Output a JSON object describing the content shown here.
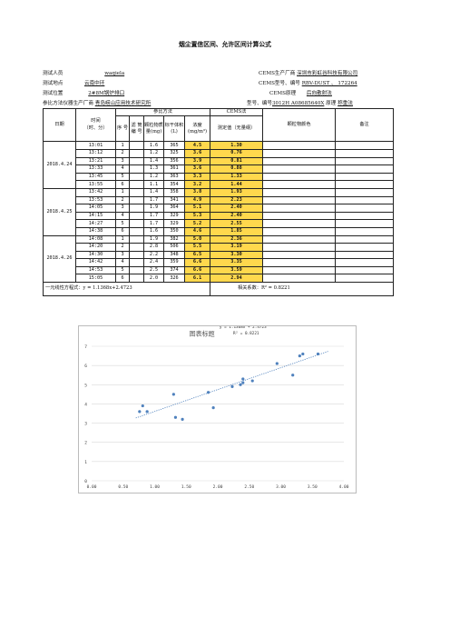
{
  "title": "烟尘置信区间、允许区间计算公式",
  "meta": {
    "tester_label": "测试人员",
    "tester": "waqiela",
    "location_label": "测试地点",
    "location": "云南中环",
    "position_label": "测试位置",
    "position": "2#8M锅炉排口",
    "ref_label": "参比方法仪器生产厂商",
    "ref_maker": "青岛崂山应用技术研究所",
    "cems_maker_label": "CEMS生产厂商",
    "cems_maker": "深圳市彩虹谷科技有限公司",
    "cems_model_label": "CEMS型号、编号",
    "cems_model": "RBV-DUST 、 172264",
    "cems_principle_label": "CEMS原理",
    "cems_principle": "后向散射法",
    "ref_model_label": "型号、编号",
    "ref_model": "3012H A08685640X",
    "ref_principle_label": "原理",
    "ref_principle": "称重法"
  },
  "headers": {
    "date": "日期",
    "ref_method": "参比方法",
    "cems_method": "CEMS法",
    "time": "时间\n（时、分）",
    "seq": "序 号",
    "filter": "滤 筒 编 号",
    "mass": "颗粒物质量(mg)",
    "volume": "标干体积(L)",
    "conc": "浓度(mg/m³)",
    "measured": "测定值（无量纲）",
    "color": "颗粒物颜色",
    "note": "备注"
  },
  "groups": [
    {
      "date": "2018.4.24",
      "rows": [
        [
          "13:01",
          "1",
          "",
          "1.6",
          "365",
          "4.5",
          "1.30"
        ],
        [
          "13:12",
          "2",
          "",
          "1.2",
          "325",
          "3.6",
          "0.76"
        ],
        [
          "13:21",
          "3",
          "",
          "1.4",
          "356",
          "3.9",
          "0.81"
        ],
        [
          "13:33",
          "4",
          "",
          "1.3",
          "361",
          "3.6",
          "0.88"
        ],
        [
          "13:45",
          "5",
          "",
          "1.2",
          "363",
          "3.3",
          "1.33"
        ],
        [
          "13:55",
          "6",
          "",
          "1.1",
          "354",
          "3.2",
          "1.44"
        ]
      ]
    },
    {
      "date": "2018.4.25",
      "rows": [
        [
          "13:42",
          "1",
          "",
          "1.4",
          "358",
          "3.8",
          "1.93"
        ],
        [
          "13:53",
          "2",
          "",
          "1.7",
          "341",
          "4.9",
          "2.23"
        ],
        [
          "14:05",
          "3",
          "",
          "1.9",
          "364",
          "5.1",
          "2.40"
        ],
        [
          "14:15",
          "4",
          "",
          "1.7",
          "329",
          "5.3",
          "2.40"
        ],
        [
          "14:27",
          "5",
          "",
          "1.7",
          "329",
          "5.2",
          "2.55"
        ],
        [
          "14:38",
          "6",
          "",
          "1.6",
          "350",
          "4.6",
          "1.85"
        ]
      ]
    },
    {
      "date": "2018.4.26",
      "rows": [
        [
          "14:08",
          "1",
          "",
          "1.9",
          "382",
          "5.0",
          "2.36"
        ],
        [
          "14:20",
          "2",
          "",
          "2.8",
          "506",
          "5.5",
          "3.19"
        ],
        [
          "14:30",
          "3",
          "",
          "2.2",
          "348",
          "6.5",
          "3.30"
        ],
        [
          "14:42",
          "4",
          "",
          "2.4",
          "359",
          "6.6",
          "3.35"
        ],
        [
          "14:53",
          "5",
          "",
          "2.5",
          "374",
          "6.6",
          "3.59"
        ],
        [
          "15:05",
          "6",
          "",
          "2.0",
          "326",
          "6.1",
          "2.94"
        ]
      ]
    }
  ],
  "footer": {
    "equation": "一元线性方程式：y = 1.1368x+2.4723",
    "correlation": "相关系数：R² = 0.8221"
  },
  "chart_data": {
    "type": "scatter",
    "title": "图表标题",
    "trendline_label": "y = 1.1368x + 2.4723",
    "r2_label": "R² = 0.8221",
    "x_ticks": [
      "0.00",
      "0.50",
      "1.00",
      "1.50",
      "2.00",
      "2.50",
      "3.00",
      "3.50",
      "4.00"
    ],
    "y_ticks": [
      "0",
      "1",
      "2",
      "3",
      "4",
      "5",
      "6",
      "7"
    ],
    "xlim": [
      0,
      4
    ],
    "ylim": [
      0,
      7
    ],
    "trend": {
      "slope": 1.1368,
      "intercept": 2.4723
    },
    "points": [
      [
        1.3,
        4.5
      ],
      [
        0.76,
        3.6
      ],
      [
        0.81,
        3.9
      ],
      [
        0.88,
        3.6
      ],
      [
        1.33,
        3.3
      ],
      [
        1.44,
        3.2
      ],
      [
        1.93,
        3.8
      ],
      [
        2.23,
        4.9
      ],
      [
        2.4,
        5.1
      ],
      [
        2.4,
        5.3
      ],
      [
        2.55,
        5.2
      ],
      [
        1.85,
        4.6
      ],
      [
        2.36,
        5.0
      ],
      [
        3.19,
        5.5
      ],
      [
        3.3,
        6.5
      ],
      [
        3.35,
        6.6
      ],
      [
        3.59,
        6.6
      ],
      [
        2.94,
        6.1
      ]
    ],
    "colors": {
      "point": "#4f81bd",
      "trend": "#4f81bd",
      "highlight": "#ffd84d"
    }
  }
}
